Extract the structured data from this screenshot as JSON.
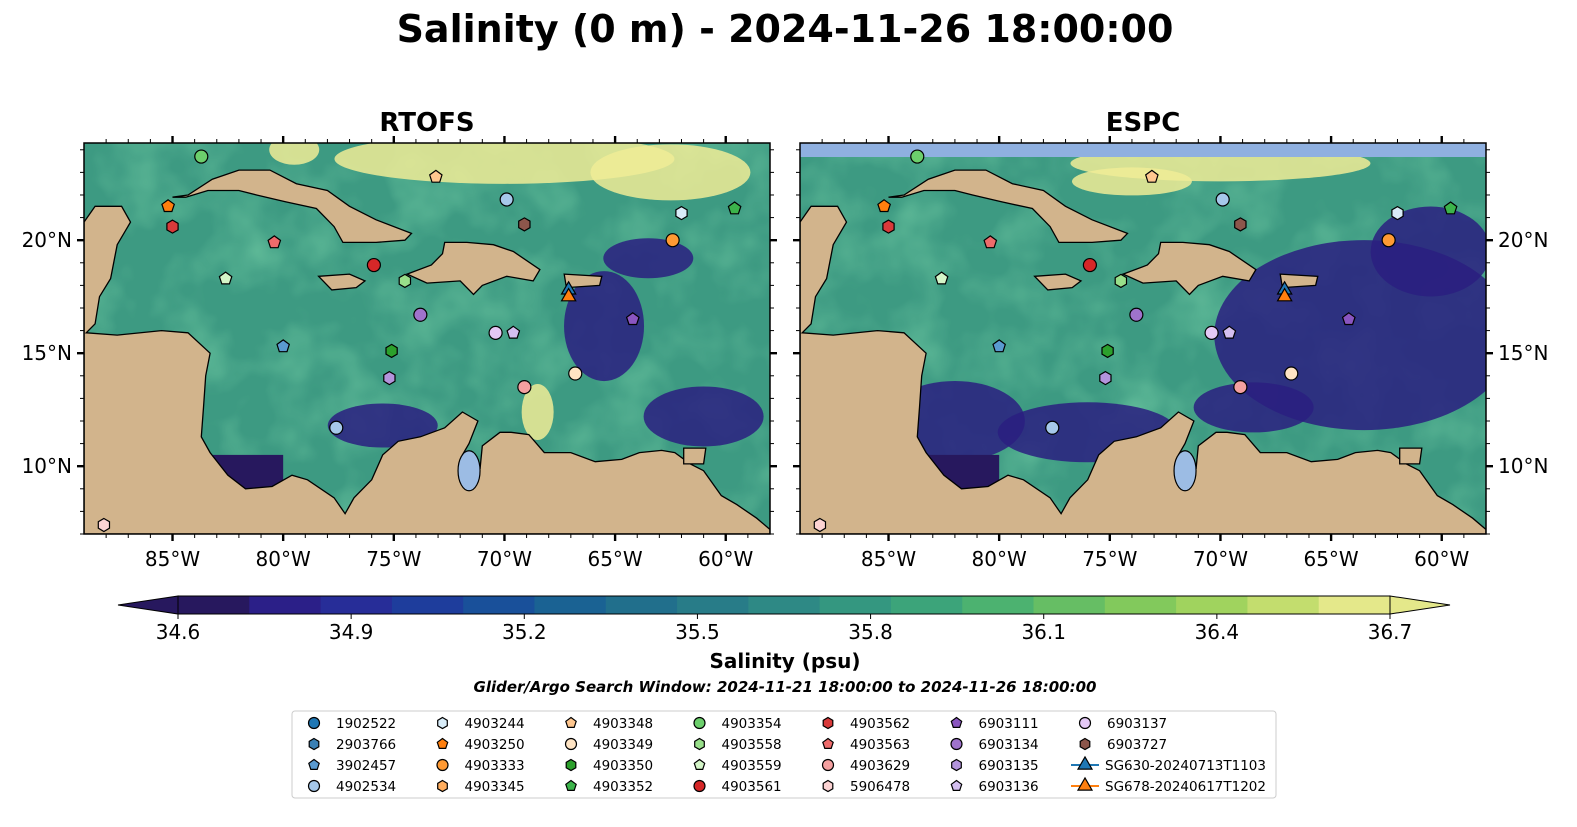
{
  "title": "Salinity (0 m) - 2024-11-26 18:00:00",
  "chart_data": {
    "type": "heatmap",
    "panels": [
      {
        "name": "RTOFS",
        "band_color": ""
      },
      {
        "name": "ESPC",
        "band_color": "#8fb0e0"
      }
    ],
    "lon_range": [
      -89,
      -58
    ],
    "lat_range": [
      7,
      24.3
    ],
    "x_ticks": [
      {
        "lon": -85,
        "label": "85°W"
      },
      {
        "lon": -80,
        "label": "80°W"
      },
      {
        "lon": -75,
        "label": "75°W"
      },
      {
        "lon": -70,
        "label": "70°W"
      },
      {
        "lon": -65,
        "label": "65°W"
      },
      {
        "lon": -60,
        "label": "60°W"
      }
    ],
    "y_ticks": [
      {
        "lat": 20,
        "label": "20°N"
      },
      {
        "lat": 15,
        "label": "15°N"
      },
      {
        "lat": 10,
        "label": "10°N"
      }
    ],
    "colorbar": {
      "label": "Salinity (psu)",
      "min": 34.6,
      "max": 36.7,
      "levels": 22,
      "ticks": [
        "34.6",
        "34.9",
        "35.2",
        "35.5",
        "35.8",
        "36.1",
        "36.4",
        "36.7"
      ],
      "colors": [
        "#27185e",
        "#2b1f88",
        "#272d98",
        "#1e3d9c",
        "#19509a",
        "#1a6293",
        "#216f8c",
        "#287c88",
        "#2e8985",
        "#349780",
        "#3ca47a",
        "#4cb270",
        "#66be64",
        "#82c95c",
        "#a0d35e",
        "#c3dd6e",
        "#e4e88a"
      ]
    },
    "search_window": "Glider/Argo Search Window: 2024-11-21 18:00:00 to 2024-11-26 18:00:00",
    "land_color": "#d2b48c",
    "ocean_base_color": "#3d9a82",
    "platforms": [
      {
        "name": "1902522",
        "marker": "circle",
        "color": "#1f77b4",
        "lon": null,
        "lat": null
      },
      {
        "name": "2903766",
        "marker": "hexagon",
        "color": "#3a80b5",
        "lon": null,
        "lat": null
      },
      {
        "name": "3902457",
        "marker": "pentagon",
        "color": "#5a9ad0",
        "lon": -80.0,
        "lat": 15.3
      },
      {
        "name": "4902534",
        "marker": "circle",
        "color": "#a6c8ea",
        "lon": -69.9,
        "lat": 21.8
      },
      {
        "name": "4903244",
        "marker": "hexagon",
        "color": "#d8ecf8",
        "lon": -62.0,
        "lat": 21.2
      },
      {
        "name": "4903250",
        "marker": "pentagon",
        "color": "#ff7f0e",
        "lon": -85.2,
        "lat": 21.5
      },
      {
        "name": "4903333",
        "marker": "circle",
        "color": "#ff9a33",
        "lon": -62.4,
        "lat": 20.0
      },
      {
        "name": "4903345",
        "marker": "hexagon",
        "color": "#ffad5e",
        "lon": null,
        "lat": null
      },
      {
        "name": "4903348",
        "marker": "pentagon",
        "color": "#ffc78f",
        "lon": -73.1,
        "lat": 22.8
      },
      {
        "name": "4903349",
        "marker": "circle",
        "color": "#ffe4c4",
        "lon": -66.8,
        "lat": 14.1
      },
      {
        "name": "4903350",
        "marker": "hexagon",
        "color": "#2ca02c",
        "lon": -75.1,
        "lat": 15.1
      },
      {
        "name": "4903352",
        "marker": "pentagon",
        "color": "#3cb44b",
        "lon": -59.6,
        "lat": 21.4
      },
      {
        "name": "4903354",
        "marker": "circle",
        "color": "#6ccf6c",
        "lon": -83.7,
        "lat": 23.7
      },
      {
        "name": "4903558",
        "marker": "hexagon",
        "color": "#98df8a",
        "lon": -74.5,
        "lat": 18.2
      },
      {
        "name": "4903559",
        "marker": "pentagon",
        "color": "#d4f5c8",
        "lon": -82.6,
        "lat": 18.3
      },
      {
        "name": "4903561",
        "marker": "circle",
        "color": "#d62728",
        "lon": -75.9,
        "lat": 18.9
      },
      {
        "name": "4903562",
        "marker": "hexagon",
        "color": "#d93a3a",
        "lon": -85.0,
        "lat": 20.6
      },
      {
        "name": "4903563",
        "marker": "pentagon",
        "color": "#ee6b6b",
        "lon": -80.4,
        "lat": 19.9
      },
      {
        "name": "4903629",
        "marker": "circle",
        "color": "#f4a0a0",
        "lon": -69.1,
        "lat": 13.5
      },
      {
        "name": "5906478",
        "marker": "hexagon",
        "color": "#fcd3d3",
        "lon": -88.1,
        "lat": 7.4
      },
      {
        "name": "6903111",
        "marker": "pentagon",
        "color": "#8a55c0",
        "lon": -64.2,
        "lat": 16.5
      },
      {
        "name": "6903134",
        "marker": "circle",
        "color": "#9f73cc",
        "lon": -73.8,
        "lat": 16.7
      },
      {
        "name": "6903135",
        "marker": "hexagon",
        "color": "#b394dc",
        "lon": -75.2,
        "lat": 13.9
      },
      {
        "name": "6903136",
        "marker": "pentagon",
        "color": "#d4bff0",
        "lon": -69.6,
        "lat": 15.9
      },
      {
        "name": "6903137",
        "marker": "circle",
        "color": "#e4c8f5",
        "lon": -70.4,
        "lat": 15.9
      },
      {
        "name": "6903727",
        "marker": "hexagon",
        "color": "#8c564b",
        "lon": -69.1,
        "lat": 20.7
      },
      {
        "name": "SG630-20240713T1103",
        "marker": "triangle",
        "color": "#1f77b4",
        "lon": -67.1,
        "lat": 17.8,
        "track": true
      },
      {
        "name": "SG678-20240617T1202",
        "marker": "triangle",
        "color": "#ff7f0e",
        "lon": -67.1,
        "lat": 17.5,
        "track": true
      }
    ],
    "extra_points": [
      {
        "lon": -77.6,
        "lat": 11.7,
        "color": "#a6c8ea",
        "marker": "circle"
      }
    ]
  }
}
